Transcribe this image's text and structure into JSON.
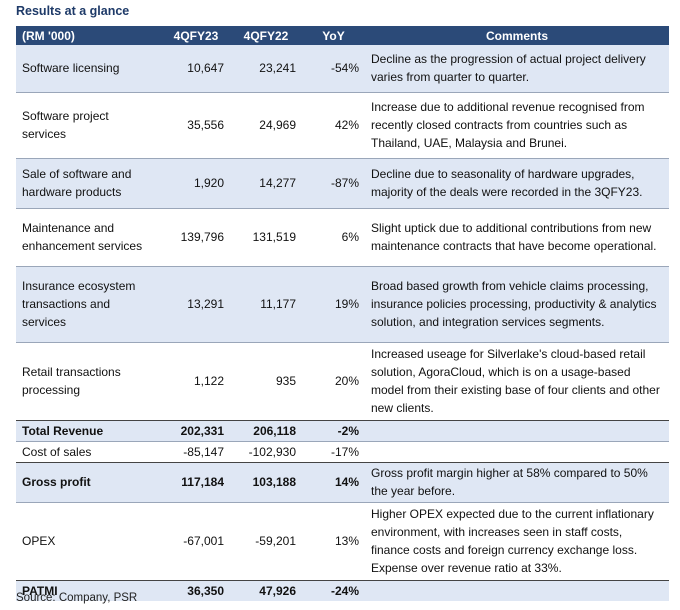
{
  "title": "Results at a glance",
  "headers": [
    "(RM '000)",
    "4QFY23",
    "4QFY22",
    "YoY",
    "Comments"
  ],
  "rows": [
    {
      "metric": "Software licensing",
      "fy23": "10,647",
      "fy22": "23,241",
      "yoy": "-54%",
      "comment": "Decline as the progression of actual project delivery varies from quarter to quarter."
    },
    {
      "metric": "Software project services",
      "fy23": "35,556",
      "fy22": "24,969",
      "yoy": "42%",
      "comment": "Increase due to additional revenue recognised from recently closed contracts from countries such as Thailand, UAE, Malaysia and Brunei."
    },
    {
      "metric": "Sale of software and hardware products",
      "fy23": "1,920",
      "fy22": "14,277",
      "yoy": "-87%",
      "comment": "Decline due to seasonality of hardware upgrades, majority of the deals were recorded in the 3QFY23."
    },
    {
      "metric": "Maintenance and enhancement services",
      "fy23": "139,796",
      "fy22": "131,519",
      "yoy": "6%",
      "comment": "Slight uptick due to additional contributions from new maintenance contracts that have become operational."
    },
    {
      "metric": "Insurance ecosystem transactions and services",
      "fy23": "13,291",
      "fy22": "11,177",
      "yoy": "19%",
      "comment": "Broad based growth from vehicle claims processing, insurance policies processing, productivity & analytics solution, and integration services segments."
    },
    {
      "metric": "Retail transactions processing",
      "fy23": "1,122",
      "fy22": "935",
      "yoy": "20%",
      "comment": "Increased useage for Silverlake's cloud-based retail solution, AgoraCloud, which is on a usage-based model from their existing base of four clients and other new clients."
    },
    {
      "metric": "Total Revenue",
      "fy23": "202,331",
      "fy22": "206,118",
      "yoy": "-2%",
      "comment": ""
    },
    {
      "metric": "Cost of sales",
      "fy23": "-85,147",
      "fy22": "-102,930",
      "yoy": "-17%",
      "comment": ""
    },
    {
      "metric": "Gross profit",
      "fy23": "117,184",
      "fy22": "103,188",
      "yoy": "14%",
      "comment": "Gross profit margin higher at 58% compared to 50% the year before."
    },
    {
      "metric": "OPEX",
      "fy23": "-67,001",
      "fy22": "-59,201",
      "yoy": "13%",
      "comment": "Higher OPEX expected due to the current inflationary environment, with increases seen in staff costs, finance costs and foreign currency exchange loss. Expense over revenue ratio at 33%."
    },
    {
      "metric": "PATMI",
      "fy23": "36,350",
      "fy22": "47,926",
      "yoy": "-24%",
      "comment": ""
    }
  ],
  "source": "Source: Company, PSR"
}
